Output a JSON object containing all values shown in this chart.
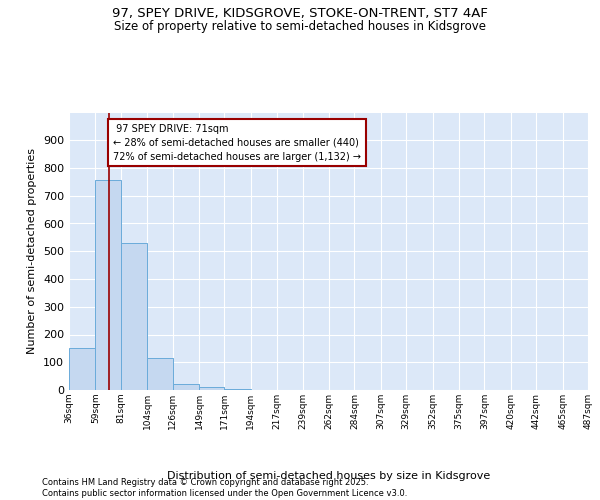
{
  "title1": "97, SPEY DRIVE, KIDSGROVE, STOKE-ON-TRENT, ST7 4AF",
  "title2": "Size of property relative to semi-detached houses in Kidsgrove",
  "xlabel": "Distribution of semi-detached houses by size in Kidsgrove",
  "ylabel": "Number of semi-detached properties",
  "bin_edges": [
    36,
    59,
    81,
    104,
    126,
    149,
    171,
    194,
    217,
    239,
    262,
    284,
    307,
    329,
    352,
    375,
    397,
    420,
    442,
    465,
    487
  ],
  "bar_heights": [
    150,
    755,
    530,
    115,
    20,
    10,
    5,
    0,
    0,
    0,
    0,
    0,
    0,
    0,
    0,
    0,
    0,
    0,
    0,
    0
  ],
  "bar_color": "#c5d8f0",
  "bar_edge_color": "#6aabda",
  "property_size": 71,
  "property_label": "97 SPEY DRIVE: 71sqm",
  "pct_smaller": 28,
  "count_smaller": 440,
  "pct_larger": 72,
  "count_larger": 1132,
  "vline_color": "#990000",
  "annotation_box_color": "#990000",
  "ylim": [
    0,
    1000
  ],
  "yticks": [
    0,
    100,
    200,
    300,
    400,
    500,
    600,
    700,
    800,
    900,
    1000
  ],
  "background_color": "#dce8f8",
  "grid_color": "#b0c4de",
  "footer": "Contains HM Land Registry data © Crown copyright and database right 2025.\nContains public sector information licensed under the Open Government Licence v3.0.",
  "title_fontsize": 9.5,
  "subtitle_fontsize": 8.5
}
